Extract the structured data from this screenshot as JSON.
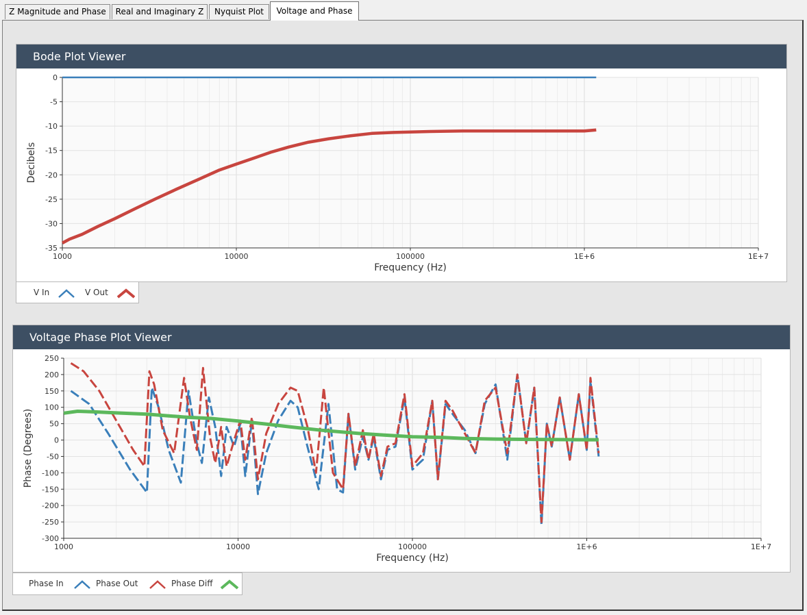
{
  "tabs": [
    {
      "label": "Z Magnitude and Phase",
      "active": false
    },
    {
      "label": "Real and Imaginary Z",
      "active": false
    },
    {
      "label": "Nyquist Plot",
      "active": false
    },
    {
      "label": "Voltage and Phase",
      "active": true
    }
  ],
  "bode": {
    "title": "Bode Plot Viewer",
    "legend": [
      {
        "label": "V In",
        "color": "#3a7fba"
      },
      {
        "label": "V Out",
        "color": "#c8453f"
      }
    ]
  },
  "phase": {
    "title": "Voltage Phase Plot Viewer",
    "legend": [
      {
        "label": "Phase In",
        "color": "#3a7fba"
      },
      {
        "label": "Phase Out",
        "color": "#c8453f"
      },
      {
        "label": "Phase Diff",
        "color": "#5cb85c"
      }
    ]
  },
  "chart_data": [
    {
      "type": "line",
      "xscale": "log",
      "xlabel": "Frequency (Hz)",
      "ylabel": "Decibels",
      "xlim": [
        1000,
        10000000
      ],
      "ylim": [
        -35,
        0
      ],
      "xticks": [
        1000,
        10000,
        100000,
        1000000,
        10000000
      ],
      "xticklabels": [
        "1000",
        "10000",
        "100000",
        "1E+6",
        "1E+7"
      ],
      "yticks": [
        0,
        -5,
        -10,
        -15,
        -20,
        -25,
        -30,
        -35
      ],
      "yticklabels": [
        "0",
        "-5",
        "-10",
        "-15",
        "-20",
        "-25",
        "-30",
        "-35"
      ],
      "grid": true,
      "series": [
        {
          "name": "V In",
          "color": "#3a7fba",
          "x": [
            1000,
            1170000
          ],
          "y": [
            0,
            0
          ]
        },
        {
          "name": "V Out",
          "color": "#c8453f",
          "x": [
            1000,
            1100,
            1300,
            1600,
            2000,
            2600,
            3400,
            4500,
            6000,
            8000,
            10000,
            13000,
            16000,
            20000,
            26000,
            34000,
            45000,
            60000,
            80000,
            100000,
            130000,
            200000,
            500000,
            1000000,
            1170000
          ],
          "y": [
            -34,
            -33.2,
            -32.2,
            -30.6,
            -29.0,
            -27.0,
            -25.0,
            -23.0,
            -21.0,
            -19.0,
            -17.8,
            -16.4,
            -15.3,
            -14.3,
            -13.3,
            -12.6,
            -12.0,
            -11.5,
            -11.3,
            -11.2,
            -11.1,
            -11.0,
            -11.0,
            -11.0,
            -10.8
          ]
        }
      ]
    },
    {
      "type": "line",
      "xscale": "log",
      "xlabel": "Frequency (Hz)",
      "ylabel": "Phase (Degrees)",
      "xlim": [
        1000,
        10000000
      ],
      "ylim": [
        -300,
        250
      ],
      "xticks": [
        1000,
        10000,
        100000,
        1000000,
        10000000
      ],
      "xticklabels": [
        "1000",
        "10000",
        "100000",
        "1E+6",
        "1E+7"
      ],
      "yticks": [
        250,
        200,
        150,
        100,
        50,
        0,
        -50,
        -100,
        -150,
        -200,
        -250,
        -300
      ],
      "yticklabels": [
        "250",
        "200",
        "150",
        "100",
        "50",
        "0",
        "-50",
        "-100",
        "-150",
        "-200",
        "-250",
        "-300"
      ],
      "grid": true,
      "series": [
        {
          "name": "Phase In",
          "color": "#3a7fba",
          "x": [
            1100,
            1400,
            1800,
            2400,
            3000,
            3200,
            3500,
            4000,
            4700,
            5200,
            5800,
            6200,
            6800,
            7400,
            8000,
            8600,
            9500,
            10300,
            11000,
            12000,
            13000,
            14500,
            17000,
            20000,
            22000,
            25000,
            29000,
            33000,
            37000,
            40000,
            43000,
            47000,
            52000,
            56000,
            60000,
            66000,
            72000,
            80000,
            90000,
            100000,
            115000,
            130000,
            140000,
            155000,
            170000,
            200000,
            230000,
            260000,
            300000,
            350000,
            400000,
            450000,
            500000,
            550000,
            590000,
            630000,
            700000,
            800000,
            900000,
            1000000,
            1050000,
            1170000
          ],
          "y": [
            150,
            110,
            20,
            -90,
            -160,
            160,
            100,
            -30,
            -130,
            150,
            -10,
            -70,
            130,
            40,
            -110,
            40,
            -20,
            50,
            -110,
            60,
            -165,
            -40,
            60,
            120,
            100,
            -20,
            -150,
            110,
            -150,
            -160,
            80,
            -90,
            10,
            -60,
            10,
            -120,
            -30,
            -20,
            130,
            -90,
            -60,
            120,
            -120,
            110,
            80,
            30,
            -40,
            110,
            170,
            -60,
            200,
            -10,
            160,
            -260,
            50,
            -20,
            130,
            -60,
            140,
            -30,
            180,
            -50
          ]
        },
        {
          "name": "Phase Out",
          "color": "#c8453f",
          "x": [
            1100,
            1300,
            1600,
            2000,
            2500,
            2900,
            3100,
            3300,
            3700,
            4300,
            4900,
            5300,
            5800,
            6300,
            6900,
            7400,
            8000,
            8600,
            9500,
            10300,
            11000,
            12000,
            13000,
            14500,
            17000,
            20000,
            22000,
            25000,
            28000,
            31000,
            35000,
            40000,
            43000,
            47000,
            52000,
            56000,
            60000,
            66000,
            72000,
            80000,
            90000,
            100000,
            115000,
            130000,
            140000,
            155000,
            170000,
            200000,
            230000,
            260000,
            300000,
            350000,
            400000,
            450000,
            500000,
            550000,
            590000,
            630000,
            700000,
            800000,
            900000,
            1000000,
            1050000,
            1170000
          ],
          "y": [
            235,
            210,
            150,
            60,
            -30,
            -80,
            210,
            170,
            30,
            -40,
            190,
            70,
            -30,
            220,
            10,
            -70,
            40,
            -80,
            0,
            60,
            -60,
            70,
            -120,
            20,
            110,
            160,
            150,
            40,
            -100,
            160,
            -100,
            -150,
            80,
            -80,
            30,
            -60,
            20,
            -110,
            -20,
            -10,
            140,
            -80,
            -40,
            120,
            -120,
            120,
            90,
            20,
            -40,
            120,
            160,
            -40,
            200,
            -10,
            160,
            -250,
            50,
            -20,
            130,
            -60,
            140,
            -30,
            190,
            -40
          ]
        },
        {
          "name": "Phase Diff",
          "color": "#5cb85c",
          "x": [
            1000,
            1200,
            1500,
            2000,
            3000,
            4000,
            5000,
            7000,
            10000,
            15000,
            20000,
            30000,
            50000,
            70000,
            100000,
            150000,
            200000,
            300000,
            500000,
            1000000,
            1170000
          ],
          "y": [
            82,
            88,
            86,
            83,
            79,
            74,
            70,
            66,
            58,
            48,
            40,
            30,
            20,
            15,
            10,
            8,
            5,
            3,
            2,
            1,
            1
          ]
        }
      ]
    }
  ]
}
